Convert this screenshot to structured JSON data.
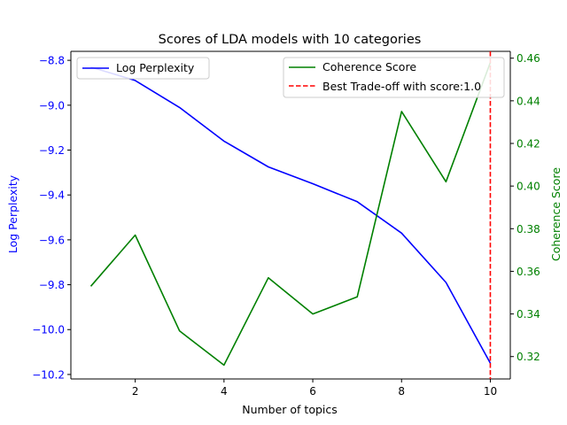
{
  "chart_data": {
    "type": "line",
    "title": "Scores of LDA models with 10 categories",
    "xlabel": "Number of topics",
    "ylabel_left": "Log Perplexity",
    "ylabel_right": "Coherence Score",
    "x": [
      1,
      2,
      3,
      4,
      5,
      6,
      7,
      8,
      9,
      10
    ],
    "xlim": [
      0.55,
      10.45
    ],
    "xticks": [
      2,
      4,
      6,
      8,
      10
    ],
    "ylim_left": [
      -10.22,
      -8.76
    ],
    "yticks_left": [
      -8.8,
      -9.0,
      -9.2,
      -9.4,
      -9.6,
      -9.8,
      -10.0,
      -10.2
    ],
    "ylim_right": [
      0.3095,
      0.4632
    ],
    "yticks_right": [
      0.32,
      0.34,
      0.36,
      0.38,
      0.4,
      0.42,
      0.44,
      0.46
    ],
    "series": [
      {
        "name": "Log Perplexity",
        "axis": "left",
        "color": "#0000ff",
        "values": [
          -8.83,
          -8.89,
          -9.01,
          -9.16,
          -9.275,
          -9.35,
          -9.43,
          -9.57,
          -9.79,
          -10.15
        ]
      },
      {
        "name": "Coherence Score",
        "axis": "right",
        "color": "#008000",
        "values": [
          0.353,
          0.377,
          0.332,
          0.316,
          0.357,
          0.34,
          0.348,
          0.435,
          0.402,
          0.458
        ]
      }
    ],
    "vline": {
      "name": "Best Trade-off with score:1.0",
      "x": 10,
      "color": "#ff0000",
      "style": "dashed"
    },
    "legend_left_placement": "upper-left",
    "legend_right_placement": "upper-right",
    "grid": false
  }
}
